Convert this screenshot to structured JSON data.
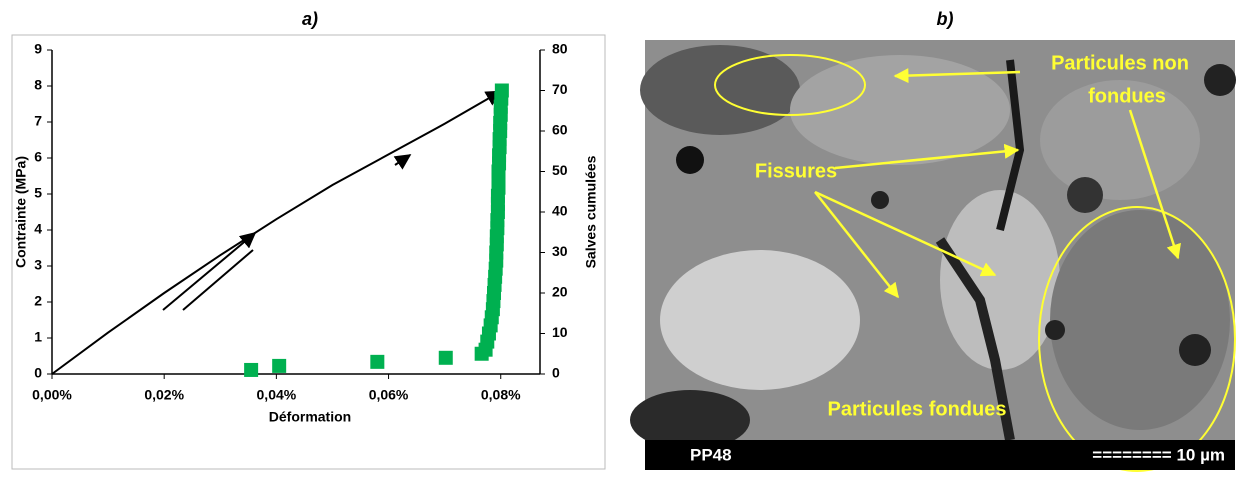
{
  "chart_data": {
    "type": "line",
    "title": "a)",
    "x_label": "Déformation",
    "y_label": "Contrainte (MPa)",
    "y2_label": "Salves cumulées",
    "xlim": [
      0,
      0.087
    ],
    "xticks": [
      {
        "value": 0,
        "label": "0,00%"
      },
      {
        "value": 0.02,
        "label": "0,02%"
      },
      {
        "value": 0.04,
        "label": "0,04%"
      },
      {
        "value": 0.06,
        "label": "0,06%"
      },
      {
        "value": 0.08,
        "label": "0,08%"
      }
    ],
    "ylim": [
      0,
      9
    ],
    "yticks": [
      0,
      1,
      2,
      3,
      4,
      5,
      6,
      7,
      8,
      9
    ],
    "y2lim": [
      0,
      80
    ],
    "y2ticks": [
      0,
      10,
      20,
      30,
      40,
      50,
      60,
      70,
      80
    ],
    "series": [
      {
        "type": "line",
        "color": "#000000",
        "x": [
          0,
          0.01,
          0.02,
          0.03,
          0.04,
          0.05,
          0.06,
          0.07,
          0.08
        ],
        "values": [
          0,
          1.15,
          2.25,
          3.3,
          4.3,
          5.25,
          6.1,
          6.95,
          7.85
        ]
      },
      {
        "type": "scatter",
        "color": "#00b050",
        "axis": "y2",
        "x": [
          0.0355,
          0.0405,
          0.058,
          0.0702,
          0.0766,
          0.0773,
          0.0776,
          0.0779,
          0.0782,
          0.0784,
          0.0786,
          0.0787,
          0.0788,
          0.0789,
          0.079,
          0.0791,
          0.0792,
          0.0792,
          0.0793,
          0.0793,
          0.0794,
          0.0794,
          0.0795,
          0.0795,
          0.0795,
          0.0796,
          0.0796,
          0.0796,
          0.0797,
          0.0797,
          0.0798,
          0.0798,
          0.0799,
          0.0799,
          0.08,
          0.08,
          0.0801,
          0.0802
        ],
        "values": [
          1,
          2,
          3,
          4,
          5,
          6,
          8,
          10,
          12,
          14,
          16,
          18,
          20,
          22,
          24,
          26,
          28,
          30,
          32,
          34,
          36,
          38,
          40,
          42,
          44,
          46,
          48,
          50,
          52,
          54,
          56,
          58,
          60,
          62,
          64,
          66,
          68,
          70
        ]
      }
    ]
  },
  "image_panel": {
    "title": "b)",
    "labels": [
      "Particules non",
      "fondues",
      "Fissures",
      "Particules fondues"
    ],
    "sample": "PP48",
    "scale": "======== 10 µm"
  }
}
